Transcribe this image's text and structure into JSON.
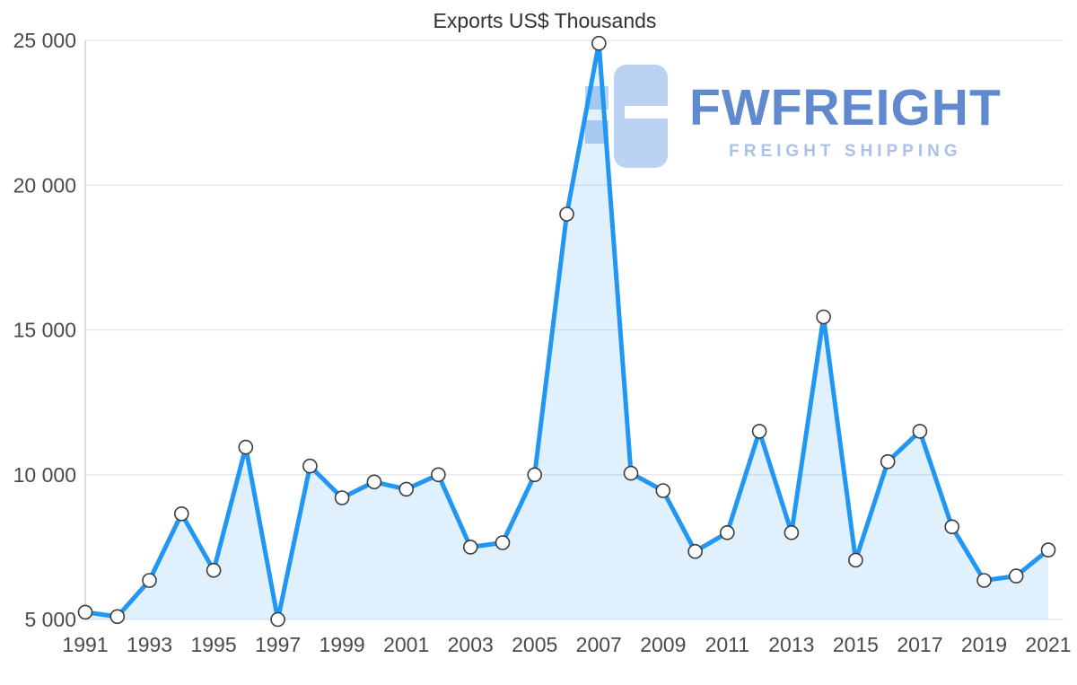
{
  "watermark": {
    "brand": "FWFREIGHT",
    "tagline": "FREIGHT SHIPPING",
    "brand_color": "#6189ce",
    "tagline_color": "#a9c2e6",
    "logo_color": "#bcd2f2"
  },
  "chart_data": {
    "type": "area",
    "title": "Exports US$ Thousands",
    "xlabel": "",
    "ylabel": "",
    "x": [
      1991,
      1992,
      1993,
      1994,
      1995,
      1996,
      1997,
      1998,
      1999,
      2000,
      2001,
      2002,
      2003,
      2004,
      2005,
      2006,
      2007,
      2008,
      2009,
      2010,
      2011,
      2012,
      2013,
      2014,
      2015,
      2016,
      2017,
      2018,
      2019,
      2020,
      2021
    ],
    "values": [
      5250,
      5100,
      6350,
      8650,
      6700,
      10950,
      5000,
      10300,
      9200,
      9750,
      9500,
      10000,
      7500,
      7650,
      10000,
      19000,
      24900,
      10050,
      9450,
      7350,
      8000,
      11500,
      8000,
      15450,
      7050,
      10450,
      11500,
      8200,
      6350,
      6500,
      7400
    ],
    "ylim": [
      5000,
      25000
    ],
    "yticks": [
      5000,
      10000,
      15000,
      20000,
      25000
    ],
    "ytick_labels": [
      "5 000",
      "10 000",
      "15 000",
      "20 000",
      "25 000"
    ],
    "xtick_labels": [
      "1991",
      "1993",
      "1995",
      "1997",
      "1999",
      "2001",
      "2003",
      "2005",
      "2007",
      "2009",
      "2011",
      "2013",
      "2015",
      "2017",
      "2019",
      "2021"
    ],
    "grid": true,
    "legend": "none",
    "line_color": "#2196f3",
    "fill_color": "rgba(33,150,243,0.14)",
    "marker_fill": "#ffffff",
    "marker_stroke": "#3c3c3c",
    "grid_color": "#e5e5e5",
    "axis_color": "#cccccc"
  }
}
